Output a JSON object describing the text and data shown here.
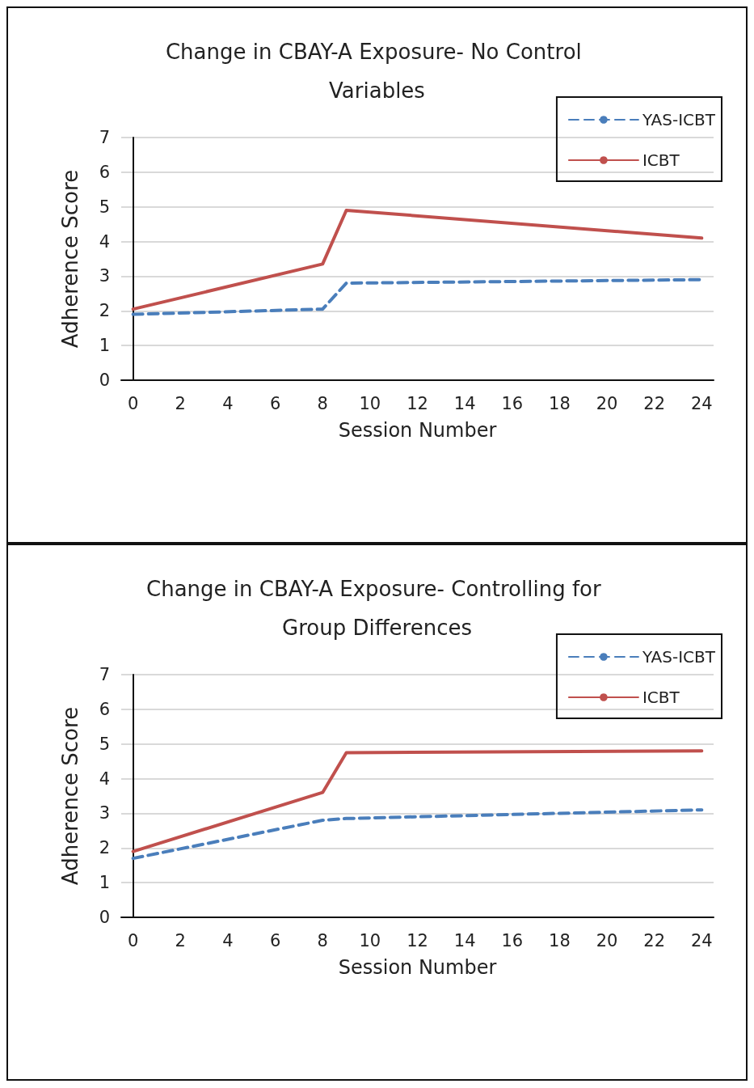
{
  "chart_data": [
    {
      "type": "line",
      "title": "Change in CBAY-A Exposure- No Control Variables",
      "xlabel": "Session Number",
      "ylabel": "Adherence Score",
      "xlim": [
        -0.5,
        24.5
      ],
      "xticks": [
        0,
        2,
        4,
        6,
        8,
        10,
        12,
        14,
        16,
        18,
        20,
        22,
        24
      ],
      "ylim": [
        0,
        7
      ],
      "yticks": [
        0,
        1,
        2,
        3,
        4,
        5,
        6,
        7
      ],
      "grid": "y",
      "legend": "top right",
      "marker": "none",
      "series": [
        {
          "name": "YAS-ICBT",
          "color": "#4a7ebb",
          "line_style": "dashed",
          "x": [
            0,
            8,
            9,
            24
          ],
          "values": [
            1.9,
            2.05,
            2.8,
            2.9
          ]
        },
        {
          "name": "ICBT",
          "color": "#c0504d",
          "line_style": "solid",
          "x": [
            0,
            8,
            9,
            24
          ],
          "values": [
            2.05,
            3.35,
            4.9,
            4.1
          ]
        }
      ]
    },
    {
      "type": "line",
      "title": "Change in CBAY-A Exposure- Controlling for Group Differences",
      "xlabel": "Session Number",
      "ylabel": "Adherence Score",
      "xlim": [
        -0.5,
        24.5
      ],
      "xticks": [
        0,
        2,
        4,
        6,
        8,
        10,
        12,
        14,
        16,
        18,
        20,
        22,
        24
      ],
      "ylim": [
        0,
        7
      ],
      "yticks": [
        0,
        1,
        2,
        3,
        4,
        5,
        6,
        7
      ],
      "grid": "y",
      "legend": "top right",
      "marker": "none",
      "series": [
        {
          "name": "YAS-ICBT",
          "color": "#4a7ebb",
          "line_style": "dashed",
          "x": [
            0,
            8,
            9,
            24
          ],
          "values": [
            1.7,
            2.8,
            2.85,
            3.1
          ]
        },
        {
          "name": "ICBT",
          "color": "#c0504d",
          "line_style": "solid",
          "x": [
            0,
            8,
            9,
            24
          ],
          "values": [
            1.9,
            3.6,
            4.75,
            4.8
          ]
        }
      ]
    }
  ]
}
